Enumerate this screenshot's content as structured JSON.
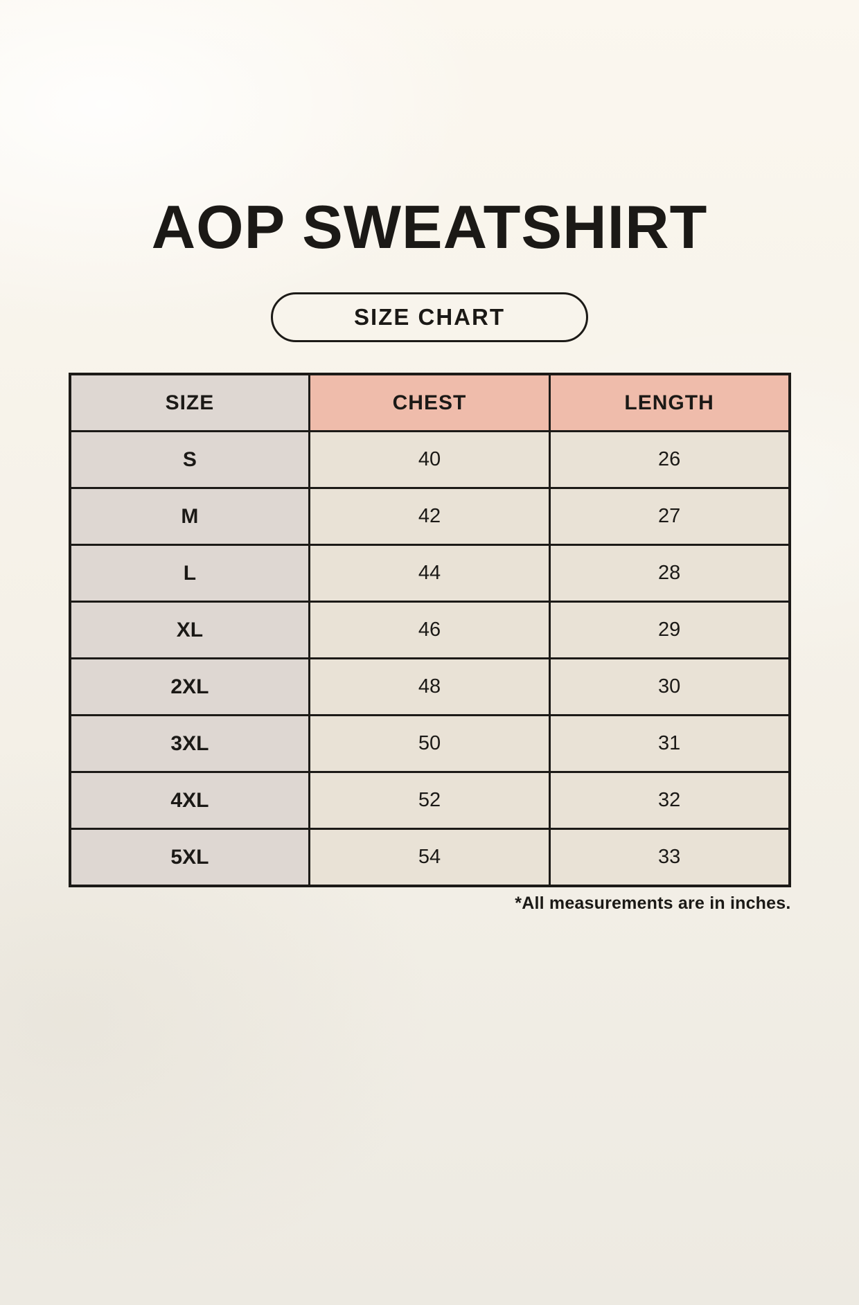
{
  "page": {
    "title": "AOP SWEATSHIRT",
    "badge": "SIZE CHART",
    "footnote": "*All measurements are in inches."
  },
  "colors": {
    "background_top": "#fbf7ef",
    "background_bottom": "#edeae2",
    "size_col_bg": "#ded7d2",
    "measure_header_bg": "#efbcab",
    "value_cell_bg": "#e9e2d6",
    "table_border": "#1c1a17",
    "text_color": "#1b1916"
  },
  "chart_data": {
    "type": "table",
    "title": "AOP SWEATSHIRT",
    "subtitle": "SIZE CHART",
    "units": "inches",
    "columns": [
      "SIZE",
      "CHEST",
      "LENGTH"
    ],
    "rows": [
      {
        "size": "S",
        "chest": 40,
        "length": 26
      },
      {
        "size": "M",
        "chest": 42,
        "length": 27
      },
      {
        "size": "L",
        "chest": 44,
        "length": 28
      },
      {
        "size": "XL",
        "chest": 46,
        "length": 29
      },
      {
        "size": "2XL",
        "chest": 48,
        "length": 30
      },
      {
        "size": "3XL",
        "chest": 50,
        "length": 31
      },
      {
        "size": "4XL",
        "chest": 52,
        "length": 32
      },
      {
        "size": "5XL",
        "chest": 54,
        "length": 33
      }
    ],
    "note": "*All measurements are in inches."
  }
}
